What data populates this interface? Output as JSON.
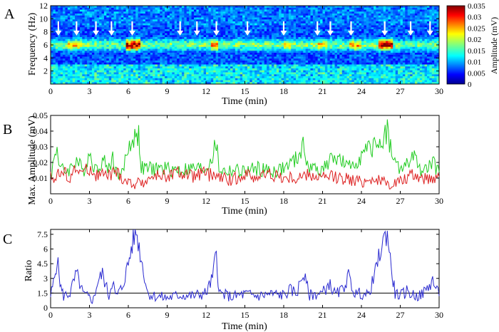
{
  "colors": {
    "green": "#22cc22",
    "red": "#dd2222",
    "blue": "#2a2ad0",
    "arrow": "#ffffff"
  },
  "chart_data": [
    {
      "panel_label": "A",
      "type": "heatmap",
      "xlabel": "Time (min)",
      "ylabel": "Frequency (Hz)",
      "xlim": [
        0,
        30
      ],
      "ylim": [
        0,
        12
      ],
      "xticks": [
        "0",
        "3",
        "6",
        "9",
        "12",
        "15",
        "18",
        "21",
        "24",
        "27",
        "30"
      ],
      "yticks": [
        "2",
        "4",
        "6",
        "8",
        "10",
        "12"
      ],
      "colorbar": {
        "label": "Amplitude (mV)",
        "range": [
          0,
          0.035
        ],
        "ticks": [
          "0.035",
          "0.03",
          "0.025",
          "0.02",
          "0.015",
          "0.01",
          "0.005",
          "0"
        ],
        "colormap": "jet"
      },
      "dominant_band_hz": 6,
      "arrow_times_min": [
        0.6,
        2.0,
        3.5,
        4.7,
        6.3,
        10.0,
        11.3,
        12.8,
        15.2,
        18.0,
        20.6,
        21.6,
        23.2,
        25.8,
        27.8,
        29.3
      ]
    },
    {
      "panel_label": "B",
      "type": "line",
      "xlabel": "Time (min)",
      "ylabel": "Max. Amplitude (mV)",
      "xlim": [
        0,
        30
      ],
      "ylim": [
        0,
        0.05
      ],
      "xticks": [
        "0",
        "3",
        "6",
        "9",
        "12",
        "15",
        "18",
        "21",
        "24",
        "27",
        "30"
      ],
      "yticks": [
        "0.01",
        "0.02",
        "0.03",
        "0.04",
        "0.05"
      ],
      "series": [
        {
          "color": "#22cc22",
          "x": [
            0,
            0.5,
            0.7,
            1,
            1.5,
            2,
            2.5,
            3,
            3.5,
            4,
            4.5,
            4.8,
            5,
            5.5,
            6,
            6.5,
            6.8,
            7,
            8,
            9,
            10,
            11,
            12,
            12.5,
            12.8,
            13,
            13.5,
            14,
            15,
            16,
            17,
            18,
            19,
            19.5,
            20,
            21,
            22,
            22.5,
            23,
            24,
            24.5,
            25,
            25.5,
            26,
            26.5,
            27,
            27.5,
            28,
            28.5,
            29,
            29.5,
            30
          ],
          "y": [
            0.012,
            0.03,
            0.018,
            0.014,
            0.016,
            0.022,
            0.014,
            0.026,
            0.015,
            0.022,
            0.016,
            0.024,
            0.014,
            0.012,
            0.03,
            0.036,
            0.038,
            0.016,
            0.016,
            0.016,
            0.015,
            0.016,
            0.016,
            0.024,
            0.032,
            0.016,
            0.014,
            0.015,
            0.014,
            0.016,
            0.014,
            0.016,
            0.022,
            0.03,
            0.016,
            0.016,
            0.024,
            0.02,
            0.016,
            0.024,
            0.028,
            0.03,
            0.034,
            0.04,
            0.02,
            0.016,
            0.018,
            0.024,
            0.016,
            0.015,
            0.02,
            0.014
          ]
        },
        {
          "color": "#dd2222",
          "x": [
            0,
            0.5,
            1,
            1.5,
            2,
            2.5,
            3,
            3.5,
            4,
            4.5,
            5,
            5.5,
            6,
            6.5,
            7,
            8,
            9,
            10,
            11,
            12,
            13,
            14,
            15,
            16,
            17,
            18,
            19,
            20,
            21,
            22,
            23,
            24,
            25,
            26,
            27,
            28,
            29,
            30
          ],
          "y": [
            0.01,
            0.012,
            0.014,
            0.011,
            0.016,
            0.013,
            0.016,
            0.012,
            0.012,
            0.011,
            0.014,
            0.01,
            0.007,
            0.006,
            0.007,
            0.011,
            0.012,
            0.013,
            0.011,
            0.013,
            0.01,
            0.009,
            0.012,
            0.011,
            0.013,
            0.01,
            0.01,
            0.012,
            0.01,
            0.011,
            0.009,
            0.008,
            0.01,
            0.006,
            0.008,
            0.012,
            0.01,
            0.011
          ]
        }
      ]
    },
    {
      "panel_label": "C",
      "type": "line",
      "xlabel": "Time (min)",
      "ylabel": "Ratio",
      "xlim": [
        0,
        30
      ],
      "ylim": [
        0,
        8
      ],
      "xticks": [
        "0",
        "3",
        "6",
        "9",
        "12",
        "15",
        "18",
        "21",
        "24",
        "27",
        "30"
      ],
      "yticks": [
        "0",
        "1.5",
        "3",
        "4.5",
        "6",
        "7.5"
      ],
      "reference_line_y": 1.5,
      "series": [
        {
          "color": "#2a2ad0",
          "x": [
            0,
            0.3,
            0.5,
            0.8,
            1,
            1.5,
            2,
            2.5,
            3,
            3.3,
            3.6,
            4,
            4.5,
            4.8,
            5,
            5.5,
            6,
            6.3,
            6.6,
            7,
            7.5,
            8,
            9,
            10,
            11,
            12,
            12.5,
            12.8,
            13,
            13.5,
            14,
            15,
            16,
            17,
            18,
            18.5,
            19,
            19.5,
            20,
            21,
            21.5,
            22,
            22.5,
            23,
            23.5,
            24,
            24.5,
            25,
            25.5,
            26,
            26.3,
            26.6,
            27,
            27.5,
            28,
            28.5,
            29,
            29.5,
            30
          ],
          "y": [
            1.2,
            3,
            5,
            2,
            1.2,
            1.5,
            3.5,
            1.4,
            1,
            0.8,
            2.5,
            3.5,
            1.2,
            3,
            1.1,
            2,
            4.5,
            6.5,
            7.9,
            5,
            1.5,
            1.2,
            1,
            1.3,
            1.2,
            1.5,
            3,
            5.8,
            1.5,
            1.3,
            1.1,
            1.4,
            1.2,
            1.4,
            1.3,
            1.8,
            1.5,
            3.5,
            1.3,
            1.5,
            2.5,
            1.3,
            1.8,
            3.2,
            1.4,
            1.5,
            1.2,
            3.2,
            6,
            7.8,
            4,
            1.5,
            1.2,
            1.7,
            1.3,
            1.2,
            1.8,
            2.8,
            1.2
          ]
        }
      ]
    }
  ]
}
